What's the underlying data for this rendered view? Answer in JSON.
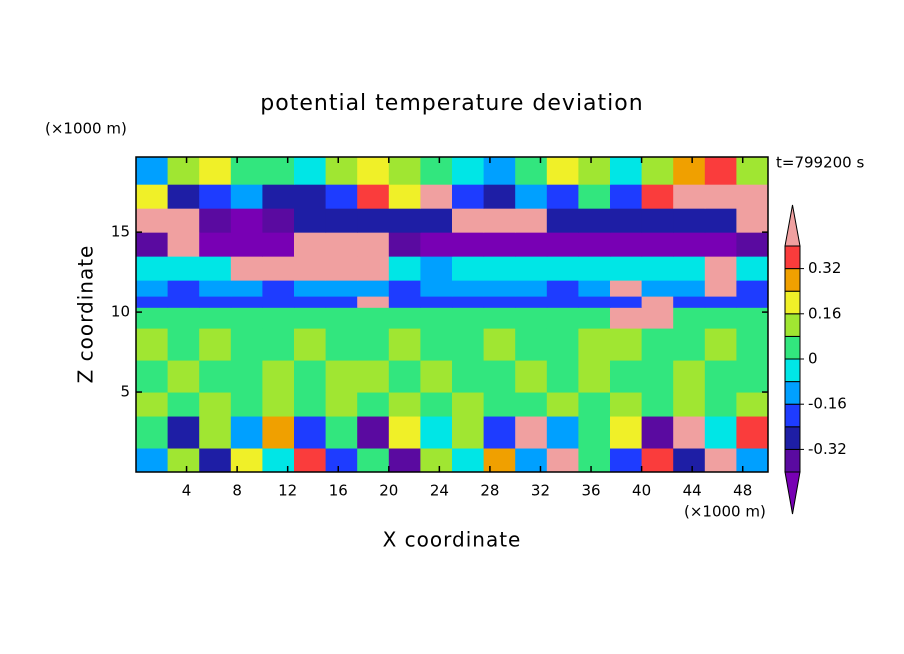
{
  "chart_data": {
    "type": "contour",
    "title": "potential temperature deviation",
    "x_label": "X coordinate",
    "y_label": "Z coordinate",
    "x_unit": "(×1000 m)",
    "y_unit": "(×1000 m)",
    "time_label": "t=799200 s",
    "xlim": [
      0,
      50
    ],
    "ylim": [
      0,
      19.7
    ],
    "xticks": [
      4,
      8,
      12,
      16,
      20,
      24,
      28,
      32,
      36,
      40,
      44,
      48
    ],
    "yticks": [
      5,
      10,
      15
    ],
    "x_edges": [
      0,
      2.5,
      5,
      7.5,
      10,
      12.5,
      15,
      17.5,
      20,
      22.5,
      25,
      27.5,
      30,
      32.5,
      35,
      37.5,
      40,
      42.5,
      45,
      47.5,
      50
    ],
    "y_edges": [
      0,
      1.5,
      3.5,
      5,
      7,
      9,
      10.3,
      11,
      12,
      13.5,
      15,
      16.5,
      18,
      19.7
    ],
    "levels": [
      -0.4,
      -0.32,
      -0.24,
      -0.16,
      -0.08,
      0,
      0.08,
      0.16,
      0.24,
      0.32,
      0.4
    ],
    "colors": [
      "#7800b4",
      "#5a0aa0",
      "#1e1ea5",
      "#1e3cff",
      "#00a0ff",
      "#00e6e6",
      "#32e67e",
      "#a0e632",
      "#f0f028",
      "#f0a000",
      "#fa3c3c",
      "#f0a0a0"
    ],
    "colorbar_ticks": [
      -0.32,
      -0.16,
      0,
      0.16,
      0.32
    ],
    "z": [
      [
        -0.12,
        0.12,
        -0.28,
        0.2,
        -0.04,
        0.36,
        -0.2,
        0.04,
        -0.36,
        0.12,
        -0.04,
        0.28,
        -0.12,
        0.45,
        0.04,
        -0.2,
        0.36,
        -0.28,
        0.45,
        -0.12
      ],
      [
        0.04,
        -0.28,
        0.12,
        -0.12,
        0.28,
        -0.2,
        0.04,
        -0.36,
        0.2,
        -0.04,
        0.12,
        -0.2,
        0.45,
        -0.12,
        0.04,
        0.2,
        -0.36,
        0.45,
        -0.04,
        0.36
      ],
      [
        0.12,
        0.04,
        0.12,
        0.04,
        0.12,
        0.04,
        0.12,
        0.04,
        0.12,
        0.04,
        0.12,
        0.04,
        0.04,
        0.12,
        0.04,
        0.12,
        0.04,
        0.12,
        0.04,
        0.12
      ],
      [
        0.04,
        0.12,
        0.04,
        0.04,
        0.12,
        0.04,
        0.12,
        0.12,
        0.04,
        0.12,
        0.04,
        0.04,
        0.12,
        0.04,
        0.12,
        0.04,
        0.04,
        0.12,
        0.04,
        0.04
      ],
      [
        0.12,
        0.04,
        0.12,
        0.04,
        0.04,
        0.12,
        0.04,
        0.04,
        0.12,
        0.04,
        0.04,
        0.12,
        0.04,
        0.04,
        0.12,
        0.12,
        0.04,
        0.04,
        0.12,
        0.04
      ],
      [
        0.04,
        0.04,
        0.04,
        0.04,
        0.04,
        0.04,
        0.04,
        0.04,
        0.04,
        0.04,
        0.04,
        0.04,
        0.04,
        0.04,
        0.04,
        0.45,
        0.45,
        0.04,
        0.04,
        0.04
      ],
      [
        -0.2,
        -0.2,
        -0.2,
        -0.2,
        -0.2,
        -0.2,
        -0.2,
        0.45,
        -0.2,
        -0.2,
        -0.2,
        -0.2,
        -0.2,
        -0.2,
        -0.2,
        -0.2,
        0.45,
        -0.2,
        -0.2,
        -0.2
      ],
      [
        -0.12,
        -0.2,
        -0.12,
        -0.12,
        -0.2,
        -0.12,
        -0.12,
        -0.12,
        -0.2,
        -0.12,
        -0.12,
        -0.12,
        -0.12,
        -0.2,
        -0.12,
        0.45,
        -0.12,
        -0.12,
        0.45,
        -0.2
      ],
      [
        -0.04,
        -0.04,
        -0.04,
        0.45,
        0.45,
        0.45,
        0.45,
        0.45,
        -0.04,
        -0.12,
        -0.04,
        -0.04,
        -0.04,
        -0.04,
        -0.04,
        -0.04,
        -0.04,
        -0.04,
        0.45,
        -0.04
      ],
      [
        -0.36,
        0.45,
        -0.45,
        -0.45,
        -0.45,
        0.45,
        0.45,
        0.45,
        -0.36,
        -0.45,
        -0.45,
        -0.45,
        -0.45,
        -0.45,
        -0.45,
        -0.45,
        -0.45,
        -0.45,
        -0.45,
        -0.36
      ],
      [
        0.45,
        0.45,
        -0.36,
        -0.45,
        -0.36,
        -0.28,
        -0.28,
        -0.28,
        -0.28,
        -0.28,
        0.45,
        0.45,
        0.45,
        -0.28,
        -0.28,
        -0.28,
        -0.28,
        -0.28,
        -0.28,
        0.45
      ],
      [
        0.2,
        -0.28,
        -0.2,
        -0.12,
        -0.28,
        -0.28,
        -0.2,
        0.36,
        0.2,
        0.45,
        -0.2,
        -0.28,
        -0.12,
        -0.2,
        0.04,
        -0.2,
        0.36,
        0.45,
        0.45,
        0.45
      ],
      [
        -0.12,
        0.12,
        0.2,
        0.04,
        0.04,
        -0.04,
        0.12,
        0.2,
        0.12,
        0.04,
        -0.04,
        -0.12,
        0.04,
        0.2,
        0.12,
        -0.04,
        0.12,
        0.28,
        0.36,
        0.12
      ]
    ]
  }
}
